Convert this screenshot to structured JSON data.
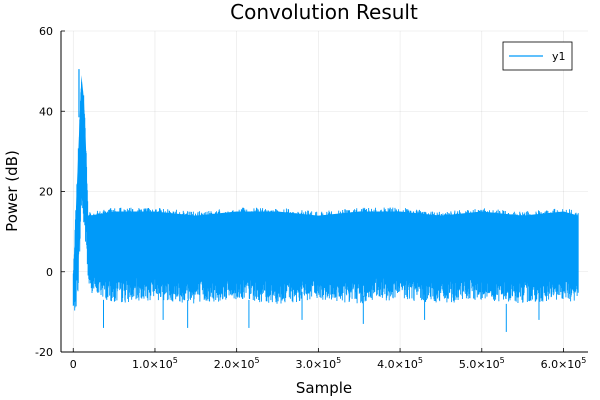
{
  "chart_data": {
    "type": "line",
    "title": "Convolution Result",
    "xlabel": "Sample",
    "ylabel": "Power (dB)",
    "xlim": [
      -15000,
      630000
    ],
    "ylim": [
      -20,
      60
    ],
    "x_ticks": [
      {
        "value": 0,
        "mantissa": "0",
        "exponent": ""
      },
      {
        "value": 100000,
        "mantissa": "1.0×10",
        "exponent": "5"
      },
      {
        "value": 200000,
        "mantissa": "2.0×10",
        "exponent": "5"
      },
      {
        "value": 300000,
        "mantissa": "3.0×10",
        "exponent": "5"
      },
      {
        "value": 400000,
        "mantissa": "4.0×10",
        "exponent": "5"
      },
      {
        "value": 500000,
        "mantissa": "5.0×10",
        "exponent": "5"
      },
      {
        "value": 600000,
        "mantissa": "6.0×10",
        "exponent": "5"
      }
    ],
    "y_ticks": [
      -20,
      0,
      20,
      40,
      60
    ],
    "grid": true,
    "legend": {
      "placement": "top-right",
      "entries": [
        "y1"
      ]
    },
    "series": [
      {
        "name": "y1",
        "color": "#009af9",
        "envelope": [
          {
            "x": 0,
            "min": -10,
            "max": 0
          },
          {
            "x": 3000,
            "min": -10,
            "max": 15
          },
          {
            "x": 6000,
            "min": -5,
            "max": 30
          },
          {
            "x": 8000,
            "min": 5,
            "max": 40
          },
          {
            "x": 10000,
            "min": 15,
            "max": 50
          },
          {
            "x": 13000,
            "min": 10,
            "max": 44
          },
          {
            "x": 16000,
            "min": 5,
            "max": 30
          },
          {
            "x": 18000,
            "min": -2,
            "max": 15
          },
          {
            "x": 20000,
            "min": -5,
            "max": 15
          },
          {
            "x": 50000,
            "min": -8,
            "max": 16
          },
          {
            "x": 100000,
            "min": -7,
            "max": 16
          },
          {
            "x": 150000,
            "min": -8,
            "max": 15
          },
          {
            "x": 200000,
            "min": -7,
            "max": 16
          },
          {
            "x": 250000,
            "min": -8,
            "max": 16
          },
          {
            "x": 300000,
            "min": -7,
            "max": 15
          },
          {
            "x": 350000,
            "min": -8,
            "max": 16
          },
          {
            "x": 400000,
            "min": -7,
            "max": 16
          },
          {
            "x": 450000,
            "min": -8,
            "max": 15
          },
          {
            "x": 500000,
            "min": -7,
            "max": 16
          },
          {
            "x": 550000,
            "min": -8,
            "max": 15
          },
          {
            "x": 600000,
            "min": -7,
            "max": 16
          },
          {
            "x": 618000,
            "min": -8,
            "max": 15
          }
        ],
        "spikes_low": [
          {
            "x": 37000,
            "y": -14
          },
          {
            "x": 110000,
            "y": -12
          },
          {
            "x": 140000,
            "y": -14
          },
          {
            "x": 215000,
            "y": -14
          },
          {
            "x": 280000,
            "y": -12
          },
          {
            "x": 355000,
            "y": -13
          },
          {
            "x": 430000,
            "y": -12
          },
          {
            "x": 530000,
            "y": -15
          },
          {
            "x": 570000,
            "y": -12
          }
        ],
        "peak": {
          "x": 7000,
          "y": 50.5
        }
      }
    ]
  }
}
